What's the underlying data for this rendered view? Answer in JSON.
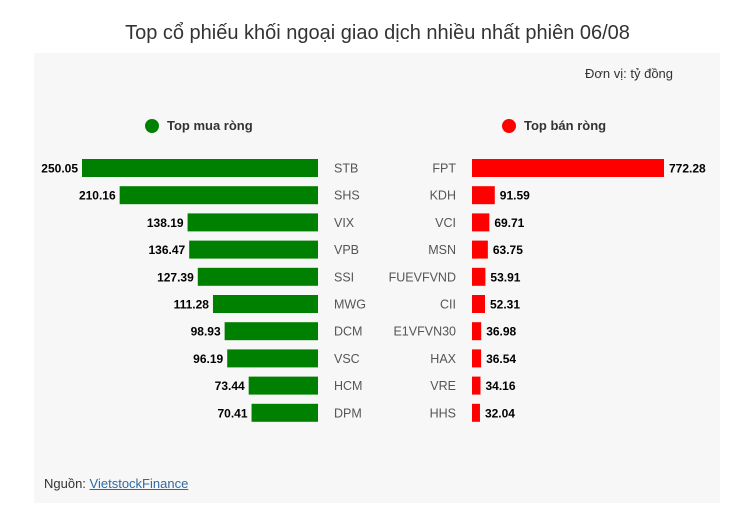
{
  "title": "Top cổ phiếu khối ngoại giao dịch nhiều nhất phiên 06/08",
  "unit_label": "Đơn vị: tỷ đồng",
  "source": {
    "prefix": "Nguồn: ",
    "link_text": "VietstockFinance"
  },
  "colors": {
    "buy": "#008000",
    "sell": "#ff0000"
  },
  "chart_data": {
    "type": "bar",
    "title": "Top cổ phiếu khối ngoại giao dịch nhiều nhất phiên 06/08",
    "unit": "Đơn vị: tỷ đồng",
    "series": [
      {
        "name": "Top mua ròng",
        "color": "#008000",
        "categories": [
          "STB",
          "SHS",
          "VIX",
          "VPB",
          "SSI",
          "MWG",
          "DCM",
          "VSC",
          "HCM",
          "DPM"
        ],
        "values": [
          250.05,
          210.16,
          138.19,
          136.47,
          127.39,
          111.28,
          98.93,
          96.19,
          73.44,
          70.41
        ],
        "labels": [
          "250.05",
          "210.16",
          "138.19",
          "136.47",
          "127.39",
          "111.28",
          "98.93",
          "96.19",
          "73.44",
          "70.41"
        ]
      },
      {
        "name": "Top bán ròng",
        "color": "#ff0000",
        "categories": [
          "FPT",
          "KDH",
          "VCI",
          "MSN",
          "FUEVFVND",
          "CII",
          "E1VFVN30",
          "HAX",
          "VRE",
          "HHS"
        ],
        "values": [
          772.28,
          91.59,
          69.71,
          63.75,
          53.91,
          52.31,
          36.98,
          36.54,
          34.16,
          32.04
        ],
        "labels": [
          "772.28",
          "91.59",
          "69.71",
          "63.75",
          "53.91",
          "52.31",
          "36.98",
          "36.54",
          "34.16",
          "32.04"
        ]
      }
    ]
  }
}
